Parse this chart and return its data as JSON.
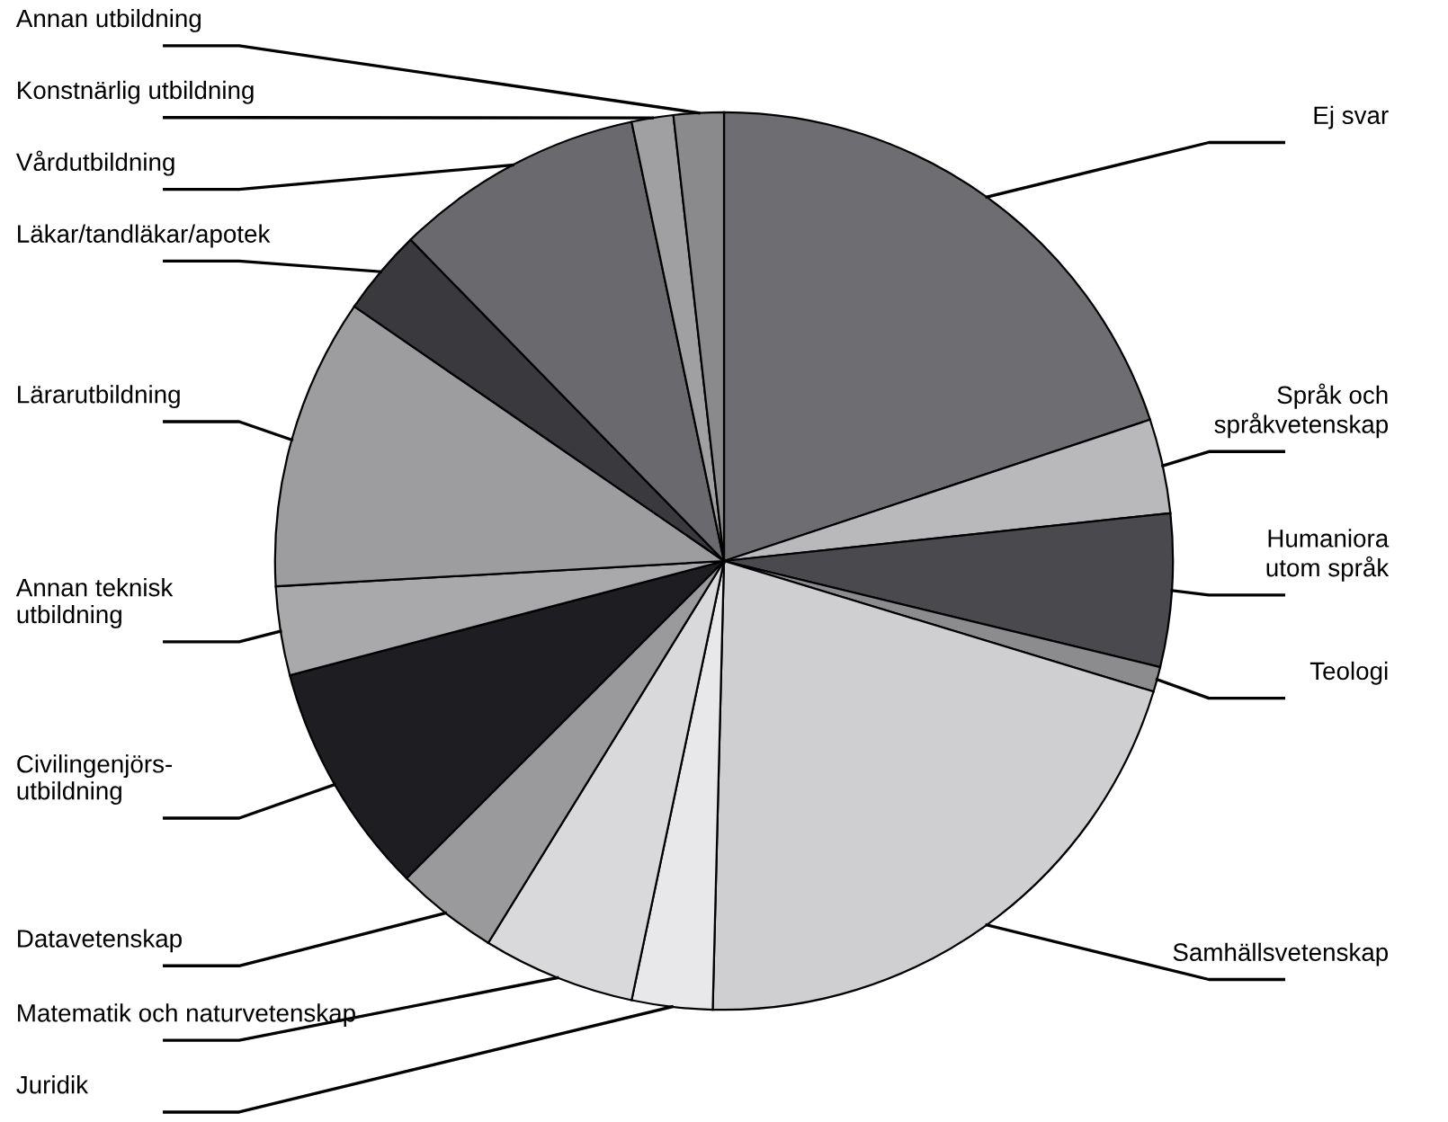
{
  "chart_data": {
    "type": "pie",
    "categories": [
      "Ej svar",
      "Språk och\nspråkvetenskap",
      "Humaniora\nutom språk",
      "Teologi",
      "Samhällsvetenskap",
      "Juridik",
      "Matematik och naturvetenskap",
      "Datavetenskap",
      "Civilingenjörs-\nutbildning",
      "Annan teknisk\nutbildning",
      "Lärarutbildning",
      "Läkar/tandläkar/apotek",
      "Vårdutbildning",
      "Konstnärlig utbildning",
      "Annan utbildning"
    ],
    "values": [
      19.9,
      3.4,
      5.5,
      0.9,
      20.7,
      2.9,
      5.5,
      3.7,
      8.4,
      3.2,
      10.5,
      3.1,
      9.0,
      1.5,
      1.8
    ],
    "colors": [
      "#6e6d72",
      "#b9b9bb",
      "#4a494e",
      "#8c8c8e",
      "#cfcfd1",
      "#e8e8ea",
      "#d9d9db",
      "#9a9a9c",
      "#1e1e22",
      "#a9a9ab",
      "#9d9d9f",
      "#3a393e",
      "#6a696e",
      "#a0a0a2",
      "#8a8a8c"
    ],
    "legend": false
  }
}
